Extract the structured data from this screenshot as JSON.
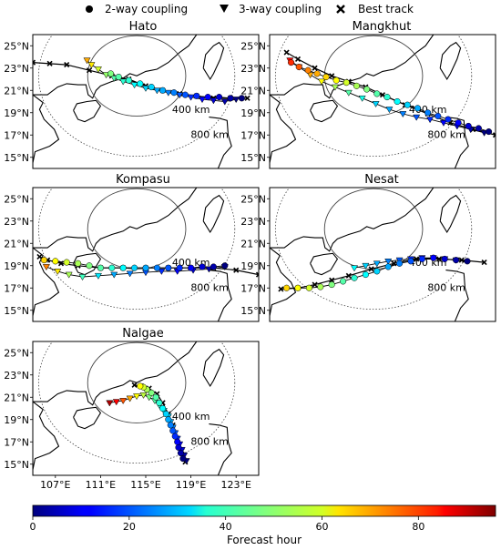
{
  "chart_data": {
    "type": "scatter",
    "legend": {
      "placement": "top-center",
      "entries": [
        {
          "label": "2-way coupling",
          "marker": "circle"
        },
        {
          "label": "3-way coupling",
          "marker": "triangle-down"
        },
        {
          "label": "Best track",
          "marker": "x"
        }
      ]
    },
    "lon_ticks": [
      "107°E",
      "111°E",
      "115°E",
      "119°E",
      "123°E"
    ],
    "lon_tick_values": [
      107,
      111,
      115,
      119,
      123
    ],
    "lat_ticks": [
      "15°N",
      "17°N",
      "19°N",
      "21°N",
      "23°N",
      "25°N"
    ],
    "lat_tick_values": [
      15,
      17,
      19,
      21,
      23,
      25
    ],
    "lon_range": [
      105,
      125
    ],
    "lat_range": [
      14,
      26
    ],
    "range_rings": {
      "center_lon": 114.2,
      "center_lat": 22.3,
      "rings": [
        {
          "label": "400 km",
          "style": "solid"
        },
        {
          "label": "800 km",
          "style": "dotted"
        }
      ]
    },
    "colorbar": {
      "label": "Forecast hour",
      "ticks": [
        "0",
        "20",
        "40",
        "60",
        "80"
      ],
      "tick_values": [
        0,
        20,
        40,
        60,
        80
      ],
      "range": [
        0,
        96
      ],
      "colormap": "jet"
    },
    "panels": [
      {
        "title": "Hato",
        "best_track": [
          [
            105.0,
            23.5
          ],
          [
            106.5,
            23.4
          ],
          [
            108.0,
            23.3
          ],
          [
            110.0,
            22.8
          ],
          [
            112.0,
            22.3
          ],
          [
            113.5,
            22.0
          ],
          [
            115.0,
            21.4
          ],
          [
            116.5,
            21.0
          ],
          [
            118.0,
            20.7
          ],
          [
            119.5,
            20.5
          ],
          [
            121.0,
            20.3
          ],
          [
            122.5,
            20.3
          ],
          [
            124.0,
            20.3
          ]
        ],
        "two_way": [
          {
            "lon": [
              123.5,
              122.5,
              121.5,
              120.5,
              119.5,
              118.5,
              117.5,
              116.5,
              115.5,
              114.5,
              113.5,
              112.6,
              111.9
            ],
            "lat": [
              20.3,
              20.3,
              20.4,
              20.4,
              20.5,
              20.6,
              20.8,
              21.0,
              21.3,
              21.6,
              21.9,
              22.2,
              22.5
            ],
            "hour": [
              0,
              4,
              8,
              12,
              16,
              20,
              24,
              28,
              32,
              36,
              40,
              44,
              48
            ]
          }
        ],
        "three_way": [
          {
            "lon": [
              123.0,
              122.0,
              121.0,
              120.0,
              119.0,
              118.0,
              117.0,
              116.0,
              115.0,
              114.0,
              113.0,
              112.2,
              111.5,
              110.8,
              110.2,
              109.8
            ],
            "lat": [
              20.2,
              20.0,
              20.1,
              20.2,
              20.4,
              20.6,
              20.8,
              21.0,
              21.2,
              21.5,
              21.8,
              22.1,
              22.4,
              22.9,
              23.3,
              23.7
            ],
            "hour": [
              0,
              4,
              8,
              12,
              16,
              20,
              24,
              28,
              32,
              36,
              40,
              44,
              50,
              56,
              62,
              68
            ]
          }
        ]
      },
      {
        "title": "Mangkhut",
        "best_track": [
          [
            125.0,
            17.0
          ],
          [
            123.0,
            17.5
          ],
          [
            121.0,
            18.1
          ],
          [
            119.0,
            18.9
          ],
          [
            117.0,
            19.7
          ],
          [
            115.0,
            20.6
          ],
          [
            113.5,
            21.3
          ],
          [
            112.0,
            21.8
          ],
          [
            110.5,
            22.3
          ],
          [
            109.0,
            23.0
          ],
          [
            107.5,
            23.8
          ],
          [
            106.5,
            24.4
          ]
        ],
        "two_way": [
          {
            "lon": [
              124.4,
              123.5,
              122.6,
              121.7,
              120.8,
              119.9,
              119.0,
              118.1,
              117.2,
              116.3,
              115.4,
              114.5,
              113.6,
              112.7,
              111.8,
              110.9,
              110.0,
              109.2,
              108.4,
              107.6,
              106.9
            ],
            "lat": [
              17.3,
              17.6,
              17.8,
              18.1,
              18.4,
              18.7,
              19.0,
              19.4,
              19.7,
              20.0,
              20.4,
              20.7,
              21.1,
              21.4,
              21.7,
              21.9,
              22.2,
              22.5,
              22.8,
              23.1,
              23.5
            ],
            "hour": [
              0,
              4,
              8,
              12,
              16,
              20,
              24,
              28,
              32,
              36,
              40,
              44,
              48,
              52,
              56,
              60,
              64,
              68,
              72,
              76,
              80
            ]
          }
        ],
        "three_way": [
          {
            "lon": [
              124.0,
              122.8,
              121.6,
              120.4,
              119.2,
              118.0,
              116.8,
              115.6,
              114.4,
              113.2,
              112.0,
              110.8,
              109.6,
              108.6,
              107.6,
              106.8
            ],
            "lat": [
              17.2,
              17.5,
              17.8,
              18.1,
              18.4,
              18.6,
              18.9,
              19.3,
              19.8,
              20.3,
              20.8,
              21.3,
              21.8,
              22.4,
              23.1,
              23.7
            ],
            "hour": [
              0,
              4,
              8,
              12,
              16,
              20,
              24,
              28,
              32,
              38,
              44,
              52,
              60,
              68,
              76,
              84
            ]
          }
        ]
      },
      {
        "title": "Kompasu",
        "best_track": [
          [
            125.0,
            18.2
          ],
          [
            123.0,
            18.6
          ],
          [
            121.0,
            18.8
          ],
          [
            119.0,
            18.8
          ],
          [
            117.0,
            18.8
          ],
          [
            115.0,
            18.8
          ],
          [
            113.0,
            18.8
          ],
          [
            111.0,
            18.8
          ],
          [
            109.0,
            19.0
          ],
          [
            107.5,
            19.2
          ],
          [
            106.3,
            19.5
          ],
          [
            105.6,
            19.8
          ]
        ],
        "two_way": [
          {
            "lon": [
              122.0,
              121.0,
              120.0,
              119.0,
              118.0,
              117.0,
              116.0,
              115.0,
              114.0,
              113.0,
              112.0,
              111.0,
              110.0,
              109.0,
              108.0,
              107.0,
              106.0
            ],
            "lat": [
              19.0,
              18.9,
              18.9,
              18.8,
              18.8,
              18.8,
              18.8,
              18.8,
              18.8,
              18.8,
              18.8,
              18.8,
              19.0,
              19.2,
              19.3,
              19.4,
              19.5
            ],
            "hour": [
              0,
              4,
              8,
              12,
              16,
              20,
              24,
              28,
              32,
              36,
              40,
              44,
              48,
              52,
              56,
              60,
              64
            ]
          }
        ],
        "three_way": [
          {
            "lon": [
              122.0,
              120.6,
              119.2,
              117.8,
              116.4,
              115.0,
              113.6,
              112.2,
              110.8,
              109.4,
              108.2,
              107.2,
              106.2
            ],
            "lat": [
              18.9,
              18.7,
              18.6,
              18.5,
              18.5,
              18.4,
              18.3,
              18.2,
              18.1,
              18.0,
              18.2,
              18.5,
              18.9
            ],
            "hour": [
              0,
              4,
              8,
              12,
              16,
              20,
              24,
              28,
              34,
              42,
              52,
              62,
              72
            ]
          }
        ]
      },
      {
        "title": "Nesat",
        "best_track": [
          [
            124.0,
            19.3
          ],
          [
            122.0,
            19.5
          ],
          [
            120.0,
            19.6
          ],
          [
            118.0,
            19.6
          ],
          [
            116.0,
            19.2
          ],
          [
            114.0,
            18.7
          ],
          [
            112.0,
            18.1
          ],
          [
            110.5,
            17.7
          ],
          [
            109.0,
            17.3
          ],
          [
            107.5,
            17.0
          ],
          [
            106.0,
            16.9
          ]
        ],
        "two_way": [
          {
            "lon": [
              122.5,
              121.5,
              120.5,
              119.5,
              118.5,
              117.5,
              116.5,
              115.5,
              114.5,
              113.5,
              112.5,
              111.5,
              110.5,
              109.5,
              108.5,
              107.5,
              106.5
            ],
            "lat": [
              19.4,
              19.5,
              19.6,
              19.7,
              19.6,
              19.4,
              19.2,
              18.9,
              18.5,
              18.2,
              17.9,
              17.6,
              17.3,
              17.1,
              17.0,
              17.0,
              17.0
            ],
            "hour": [
              0,
              4,
              8,
              12,
              16,
              20,
              24,
              28,
              32,
              36,
              40,
              44,
              48,
              52,
              56,
              60,
              64
            ]
          }
        ],
        "three_way": [
          {
            "lon": [
              121.5,
              120.5,
              119.5,
              118.5,
              117.5,
              116.5,
              115.5,
              114.5,
              113.5,
              112.5
            ],
            "lat": [
              19.5,
              19.6,
              19.7,
              19.7,
              19.6,
              19.5,
              19.4,
              19.2,
              19.0,
              18.8
            ],
            "hour": [
              0,
              4,
              8,
              12,
              16,
              20,
              24,
              28,
              32,
              36
            ]
          }
        ]
      },
      {
        "title": "Nalgae",
        "best_track": [
          [
            118.5,
            15.2
          ],
          [
            118.2,
            16.2
          ],
          [
            117.8,
            17.3
          ],
          [
            117.4,
            18.5
          ],
          [
            117.0,
            19.5
          ],
          [
            116.5,
            20.5
          ],
          [
            116.0,
            21.3
          ],
          [
            115.3,
            21.8
          ],
          [
            114.6,
            22.0
          ],
          [
            114.0,
            22.1
          ]
        ],
        "two_way": [
          {
            "lon": [
              118.3,
              118.1,
              117.9,
              117.8,
              117.6,
              117.4,
              117.2,
              117.0,
              116.8,
              116.5,
              116.2,
              115.9,
              115.5,
              115.1,
              114.8,
              114.5
            ],
            "lat": [
              15.5,
              16.0,
              16.5,
              17.0,
              17.5,
              18.0,
              18.5,
              19.0,
              19.5,
              20.0,
              20.5,
              21.0,
              21.4,
              21.7,
              21.9,
              22.0
            ],
            "hour": [
              0,
              4,
              8,
              12,
              16,
              20,
              24,
              28,
              32,
              36,
              40,
              44,
              48,
              52,
              56,
              60
            ]
          }
        ],
        "three_way": [
          {
            "lon": [
              118.6,
              118.4,
              118.2,
              118.0,
              117.8,
              117.6,
              117.4,
              117.2,
              117.0,
              116.6,
              116.2,
              115.8,
              115.3,
              114.8,
              114.2,
              113.6,
              113.0,
              112.4,
              111.8
            ],
            "lat": [
              15.3,
              15.8,
              16.3,
              16.8,
              17.3,
              17.8,
              18.3,
              18.8,
              19.3,
              19.8,
              20.3,
              20.7,
              21.0,
              21.2,
              21.1,
              20.9,
              20.7,
              20.6,
              20.5
            ],
            "hour": [
              0,
              4,
              8,
              12,
              16,
              20,
              24,
              28,
              32,
              36,
              40,
              44,
              48,
              54,
              60,
              68,
              76,
              84,
              92
            ]
          }
        ]
      }
    ]
  }
}
